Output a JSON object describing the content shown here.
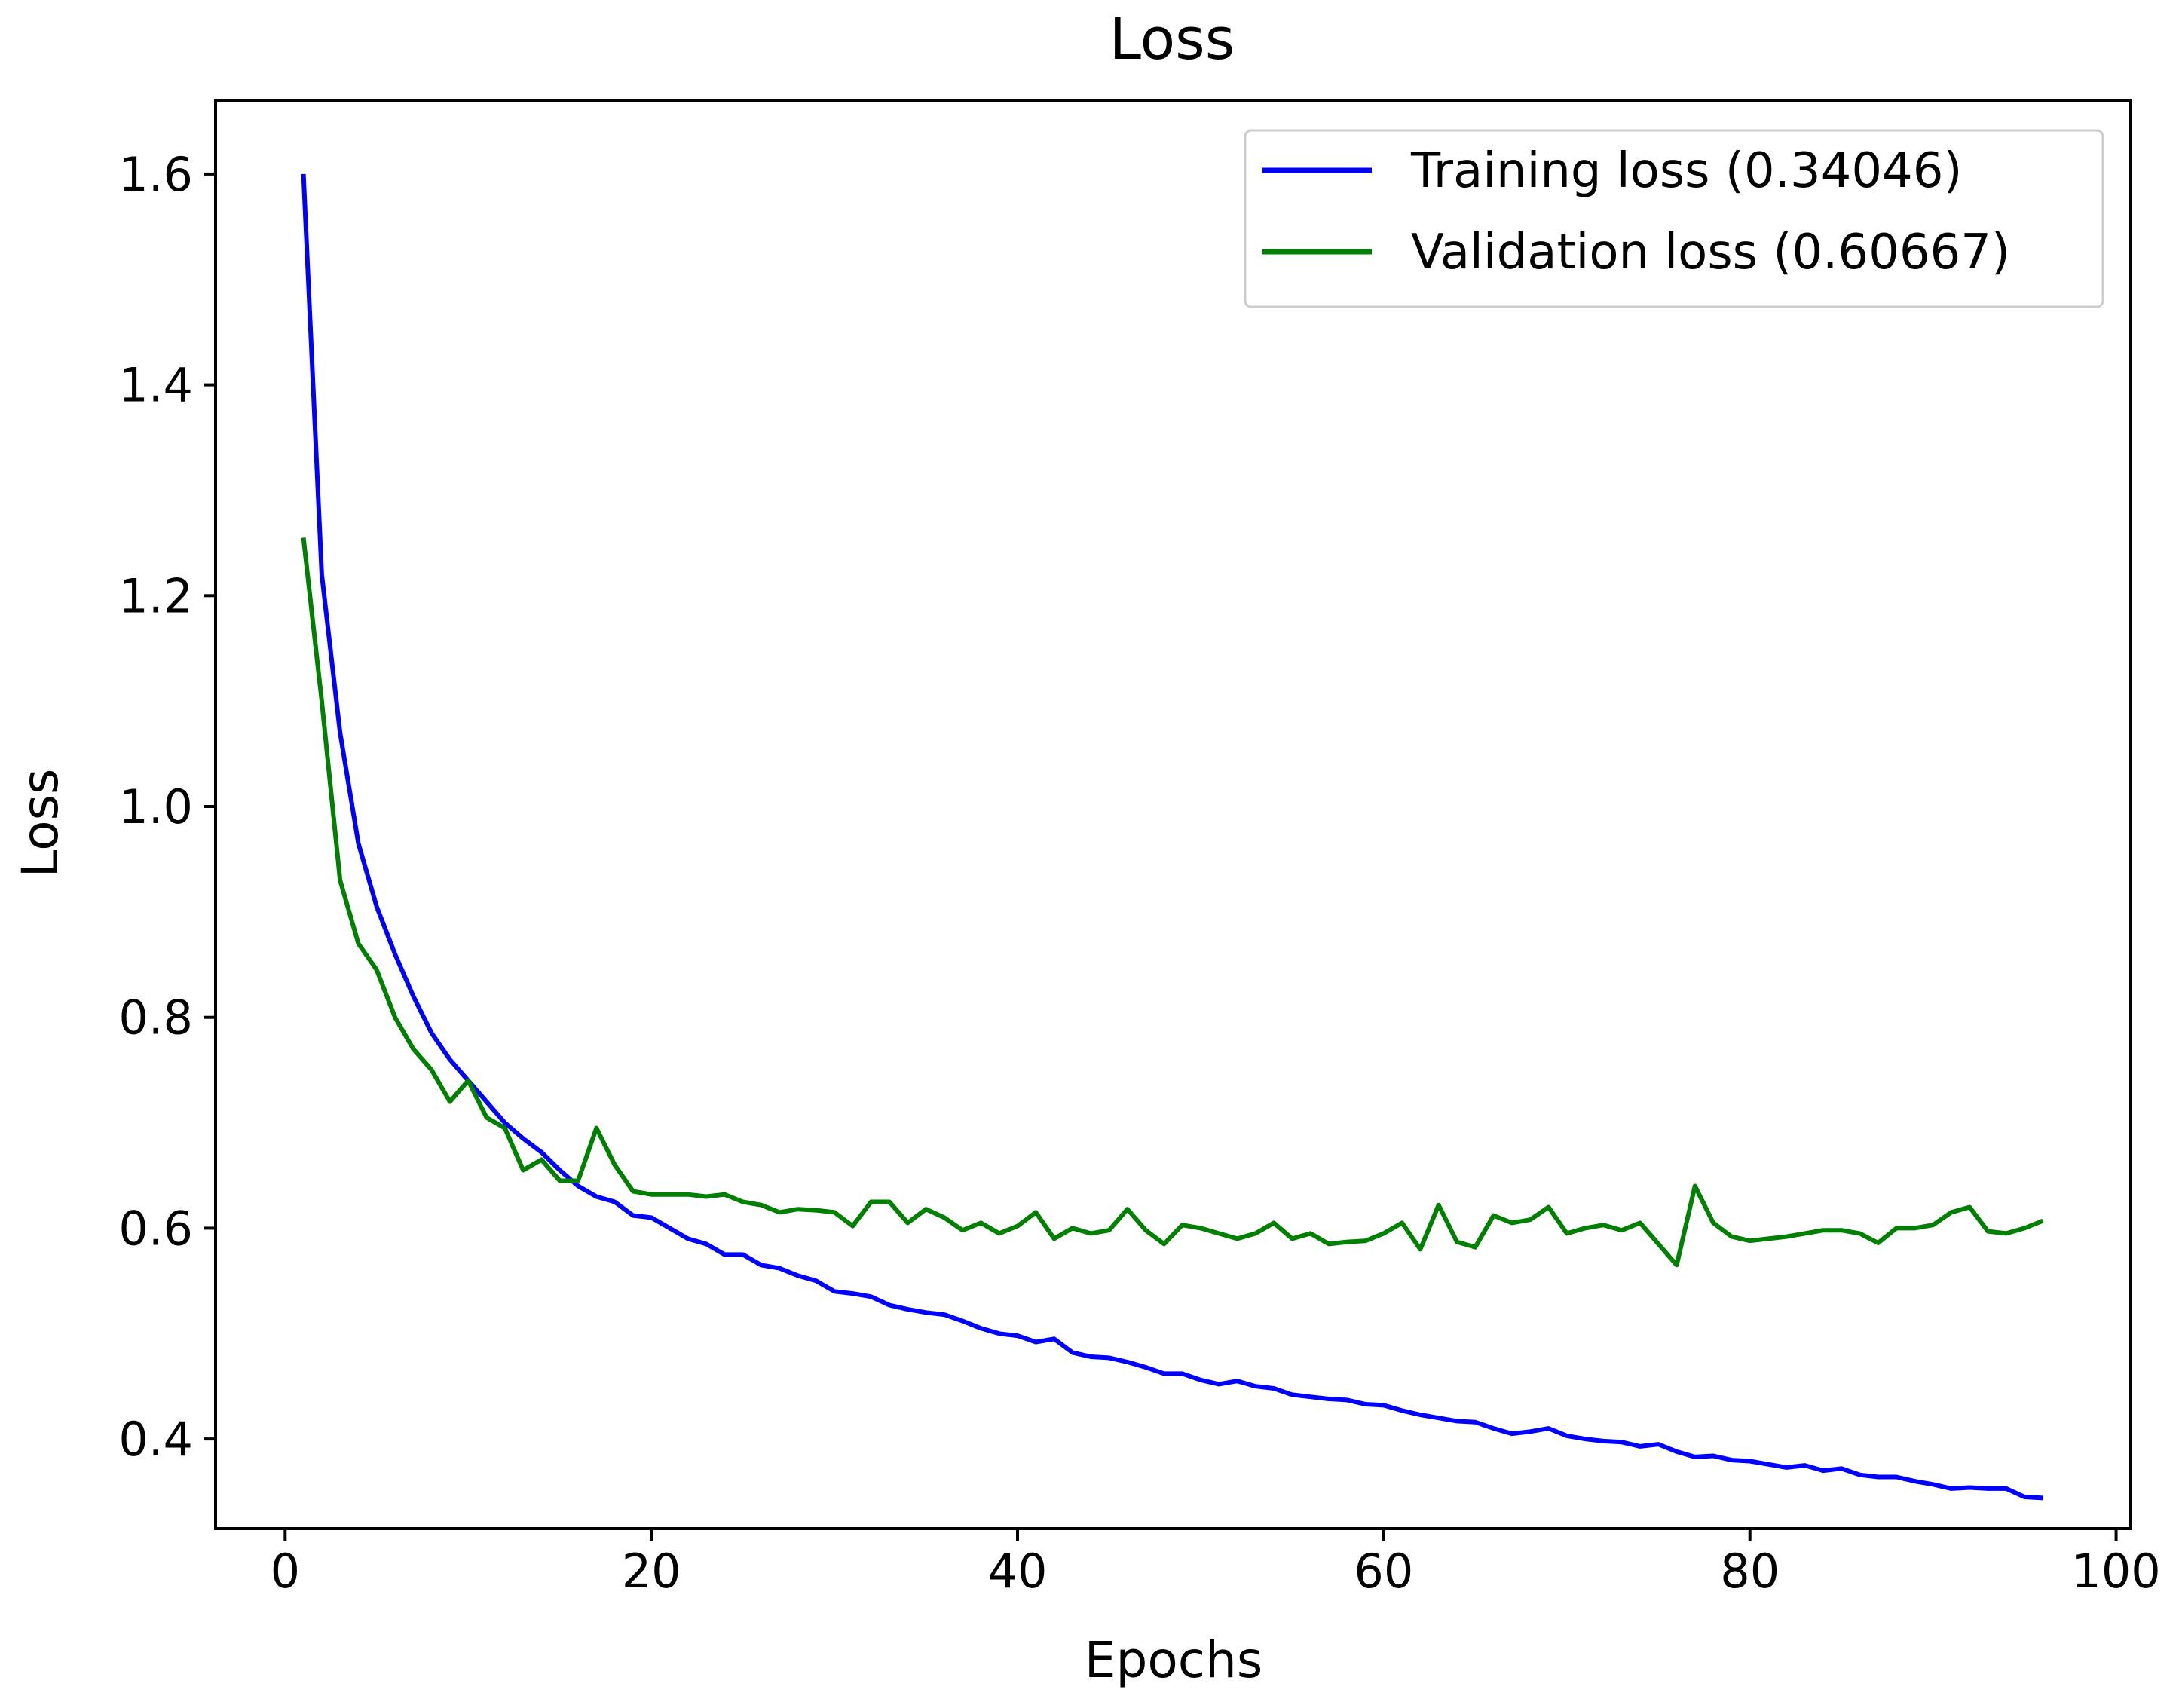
{
  "colors": {
    "training": "#0000ff",
    "validation": "#008000",
    "axis": "#000000",
    "background": "#ffffff"
  },
  "chart_data": {
    "type": "line",
    "title": "Loss",
    "xlabel": "Epochs",
    "ylabel": "Loss",
    "xlim": [
      -3.8,
      100.8
    ],
    "ylim": [
      0.315,
      1.67
    ],
    "xticks": [
      0,
      20,
      40,
      60,
      80,
      100
    ],
    "yticks": [
      0.4,
      0.6,
      0.8,
      1.0,
      1.2,
      1.4,
      1.6
    ],
    "xtick_labels": [
      "0",
      "20",
      "40",
      "60",
      "80",
      "100"
    ],
    "ytick_labels": [
      "0.4",
      "0.6",
      "0.8",
      "1.0",
      "1.2",
      "1.4",
      "1.6"
    ],
    "grid": false,
    "legend_position": "top-right",
    "series": [
      {
        "name": "Training loss (0.34046)",
        "color": "#0000ff",
        "x": [
          1,
          2,
          3,
          4,
          5,
          6,
          7,
          8,
          9,
          10,
          11,
          12,
          13,
          14,
          15,
          16,
          17,
          18,
          19,
          20,
          21,
          22,
          23,
          24,
          25,
          26,
          27,
          28,
          29,
          30,
          31,
          32,
          33,
          34,
          35,
          36,
          37,
          38,
          39,
          40,
          41,
          42,
          43,
          44,
          45,
          46,
          47,
          48,
          49,
          50,
          51,
          52,
          53,
          54,
          55,
          56,
          57,
          58,
          59,
          60,
          61,
          62,
          63,
          64,
          65,
          66,
          67,
          68,
          69,
          70,
          71,
          72,
          73,
          74,
          75,
          76,
          77,
          78,
          79,
          80,
          81,
          82,
          83,
          84,
          85,
          86,
          87,
          88,
          89,
          90,
          91,
          92,
          93,
          94,
          95,
          96
        ],
        "values": [
          1.6,
          1.22,
          1.07,
          0.965,
          0.905,
          0.86,
          0.82,
          0.785,
          0.76,
          0.74,
          0.72,
          0.7,
          0.685,
          0.672,
          0.655,
          0.64,
          0.63,
          0.625,
          0.612,
          0.61,
          0.6,
          0.59,
          0.585,
          0.575,
          0.575,
          0.565,
          0.562,
          0.555,
          0.55,
          0.54,
          0.538,
          0.535,
          0.527,
          0.523,
          0.52,
          0.518,
          0.512,
          0.505,
          0.5,
          0.498,
          0.492,
          0.495,
          0.482,
          0.478,
          0.477,
          0.473,
          0.468,
          0.462,
          0.462,
          0.456,
          0.452,
          0.455,
          0.45,
          0.448,
          0.442,
          0.44,
          0.438,
          0.437,
          0.433,
          0.432,
          0.427,
          0.423,
          0.42,
          0.417,
          0.416,
          0.41,
          0.405,
          0.407,
          0.41,
          0.403,
          0.4,
          0.398,
          0.397,
          0.393,
          0.395,
          0.388,
          0.383,
          0.384,
          0.38,
          0.379,
          0.376,
          0.373,
          0.375,
          0.37,
          0.372,
          0.366,
          0.364,
          0.364,
          0.36,
          0.357,
          0.353,
          0.354,
          0.353,
          0.353,
          0.345,
          0.344
        ]
      },
      {
        "name": "Validation loss (0.60667)",
        "color": "#008000",
        "x": [
          1,
          2,
          3,
          4,
          5,
          6,
          7,
          8,
          9,
          10,
          11,
          12,
          13,
          14,
          15,
          16,
          17,
          18,
          19,
          20,
          21,
          22,
          23,
          24,
          25,
          26,
          27,
          28,
          29,
          30,
          31,
          32,
          33,
          34,
          35,
          36,
          37,
          38,
          39,
          40,
          41,
          42,
          43,
          44,
          45,
          46,
          47,
          48,
          49,
          50,
          51,
          52,
          53,
          54,
          55,
          56,
          57,
          58,
          59,
          60,
          61,
          62,
          63,
          64,
          65,
          66,
          67,
          68,
          69,
          70,
          71,
          72,
          73,
          74,
          75,
          76,
          77,
          78,
          79,
          80,
          81,
          82,
          83,
          84,
          85,
          86,
          87,
          88,
          89,
          90,
          91,
          92,
          93,
          94,
          95,
          96
        ],
        "values": [
          1.255,
          1.1,
          0.93,
          0.87,
          0.845,
          0.8,
          0.77,
          0.75,
          0.72,
          0.74,
          0.705,
          0.695,
          0.655,
          0.665,
          0.645,
          0.645,
          0.695,
          0.66,
          0.635,
          0.632,
          0.632,
          0.632,
          0.63,
          0.632,
          0.625,
          0.622,
          0.615,
          0.618,
          0.617,
          0.615,
          0.602,
          0.625,
          0.625,
          0.605,
          0.618,
          0.61,
          0.598,
          0.605,
          0.595,
          0.602,
          0.615,
          0.59,
          0.6,
          0.595,
          0.598,
          0.618,
          0.598,
          0.585,
          0.603,
          0.6,
          0.595,
          0.59,
          0.595,
          0.605,
          0.59,
          0.595,
          0.585,
          0.587,
          0.588,
          0.595,
          0.605,
          0.58,
          0.622,
          0.587,
          0.582,
          0.612,
          0.605,
          0.608,
          0.62,
          0.595,
          0.6,
          0.603,
          0.598,
          0.605,
          0.585,
          0.565,
          0.64,
          0.605,
          0.592,
          0.588,
          0.59,
          0.592,
          0.595,
          0.598,
          0.598,
          0.595,
          0.586,
          0.6,
          0.6,
          0.603,
          0.615,
          0.62,
          0.597,
          0.595,
          0.6,
          0.607
        ]
      }
    ]
  }
}
